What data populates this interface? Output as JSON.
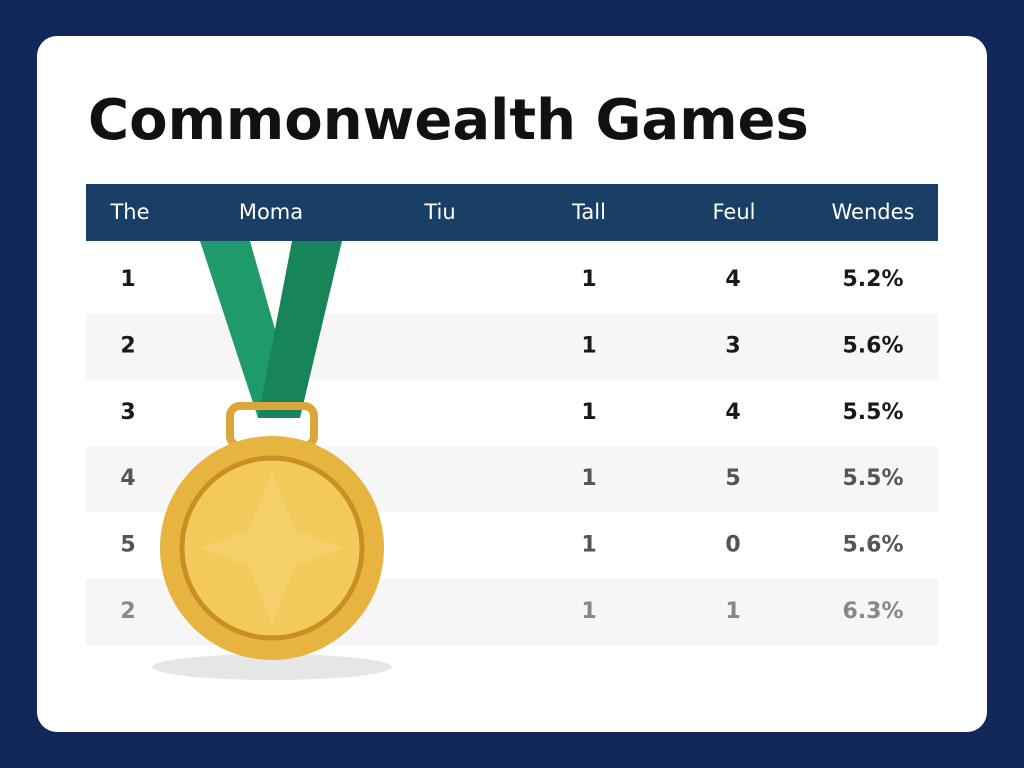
{
  "title": "Commonwealth Games",
  "table": {
    "headers": [
      "The",
      "Moma",
      "Tiu",
      "Tall",
      "Feul",
      "Wendes"
    ],
    "rows": [
      {
        "rank": "1",
        "tall": "1",
        "feul": "4",
        "wendes": "5.2%"
      },
      {
        "rank": "2",
        "tall": "1",
        "feul": "3",
        "wendes": "5.6%"
      },
      {
        "rank": "3",
        "tall": "1",
        "feul": "4",
        "wendes": "5.5%"
      },
      {
        "rank": "4",
        "tall": "1",
        "feul": "5",
        "wendes": "5.5%"
      },
      {
        "rank": "5",
        "tall": "1",
        "feul": "0",
        "wendes": "5.6%"
      },
      {
        "rank": "2",
        "tall": "1",
        "feul": "1",
        "wendes": "6.3%"
      }
    ]
  }
}
